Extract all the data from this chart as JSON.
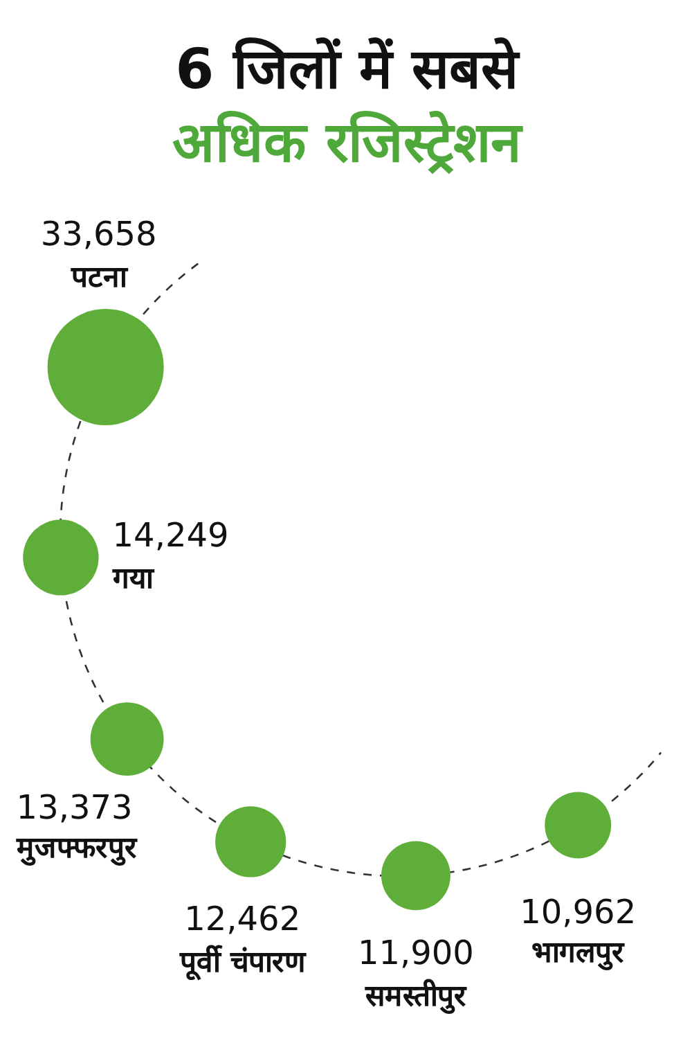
{
  "chart_data": {
    "type": "other",
    "title": "6 जिलों में सबसे",
    "subtitle": "अधिक रजिस्ट्रेशन",
    "categories": [
      "पटना",
      "गया",
      "मुजफ्फरपुर",
      "पूर्वी चंपारण",
      "समस्तीपुर",
      "भागलपुर"
    ],
    "values": [
      33658,
      14249,
      13373,
      12462,
      11900,
      10962
    ],
    "value_labels": [
      "33,658",
      "14,249",
      "13,373",
      "12,462",
      "11,900",
      "10,962"
    ],
    "color": "#5fae3a"
  }
}
